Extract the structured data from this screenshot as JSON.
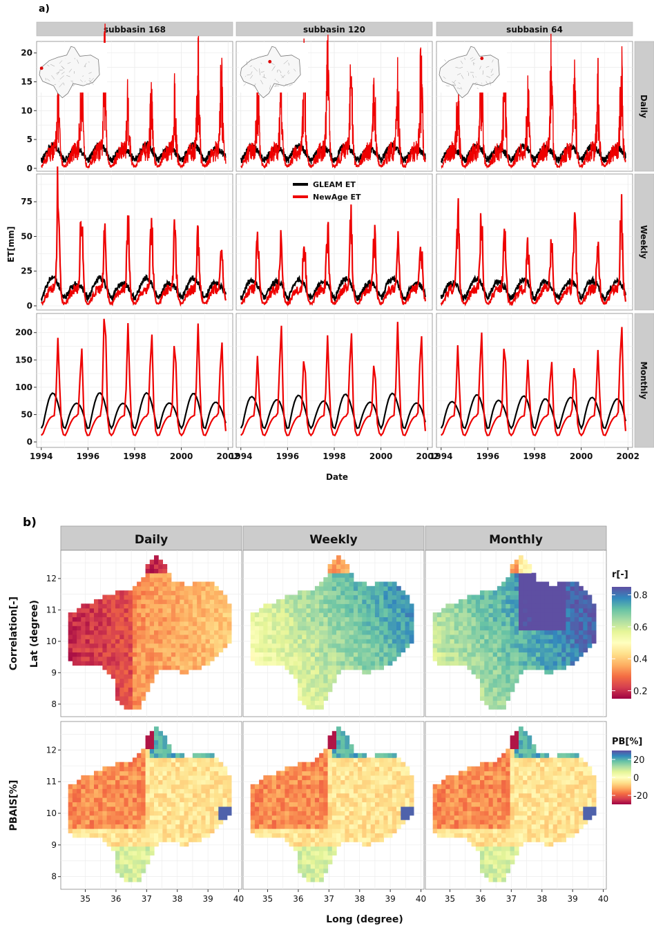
{
  "figure": {
    "panel_a_tag": "a)",
    "panel_b_tag": "b)"
  },
  "chart_data": [
    {
      "type": "line",
      "facets_cols": [
        "subbasin 168",
        "subbasin 120",
        "subbasin 64"
      ],
      "facets_rows": [
        "Daily",
        "Weekly",
        "Monthly"
      ],
      "xlabel": "Date",
      "ylabel": "ET[mm]",
      "x_ticks": [
        "1994",
        "1996",
        "1998",
        "2000",
        "2002"
      ],
      "xlim": [
        1993.8,
        2002.2
      ],
      "rows": [
        {
          "name": "Daily",
          "ylim": [
            -0.5,
            22
          ],
          "y_ticks": [
            0,
            5,
            10,
            15,
            20
          ],
          "gleam_base": 1.5,
          "gleam_amp": 2.5,
          "newage_base": 0.5,
          "newage_peak": 14
        },
        {
          "name": "Weekly",
          "ylim": [
            -3,
            95
          ],
          "y_ticks": [
            0,
            25,
            50,
            75
          ],
          "gleam_base": 6,
          "gleam_amp": 14,
          "newage_base": 2,
          "newage_peak": 48
        },
        {
          "name": "Monthly",
          "ylim": [
            -10,
            235
          ],
          "y_ticks": [
            0,
            50,
            100,
            150,
            200
          ],
          "gleam_base": 25,
          "gleam_amp": 65,
          "newage_base": 12,
          "newage_peak": 140
        }
      ],
      "series": [
        {
          "name": "GLEAM ET",
          "color": "#000000"
        },
        {
          "name": "NewAge ET",
          "color": "#ee0000"
        }
      ],
      "legend_position": "inside-top-center",
      "grid": true
    },
    {
      "type": "heatmap",
      "facets_cols": [
        "Daily",
        "Weekly",
        "Monthly"
      ],
      "facets_rows": [
        "Correlation[-]",
        "PBAIS[%]"
      ],
      "xlabel": "Long (degree)",
      "ylabel": "Lat (degree)",
      "x_ticks": [
        "35",
        "36",
        "37",
        "38",
        "39",
        "40"
      ],
      "xlim": [
        34.2,
        40.1
      ],
      "y_ticks": [
        "8",
        "9",
        "10",
        "11",
        "12"
      ],
      "ylim": [
        7.6,
        12.9
      ],
      "colorbars": [
        {
          "title": "r[-]",
          "ticks": [
            "0.8",
            "0.6",
            "0.4",
            "0.2"
          ],
          "range": [
            0.15,
            0.85
          ]
        },
        {
          "title": "PB[%]",
          "ticks": [
            "20",
            "0",
            "-20"
          ],
          "range": [
            -30,
            30
          ]
        }
      ],
      "palette": "Spectral"
    }
  ]
}
